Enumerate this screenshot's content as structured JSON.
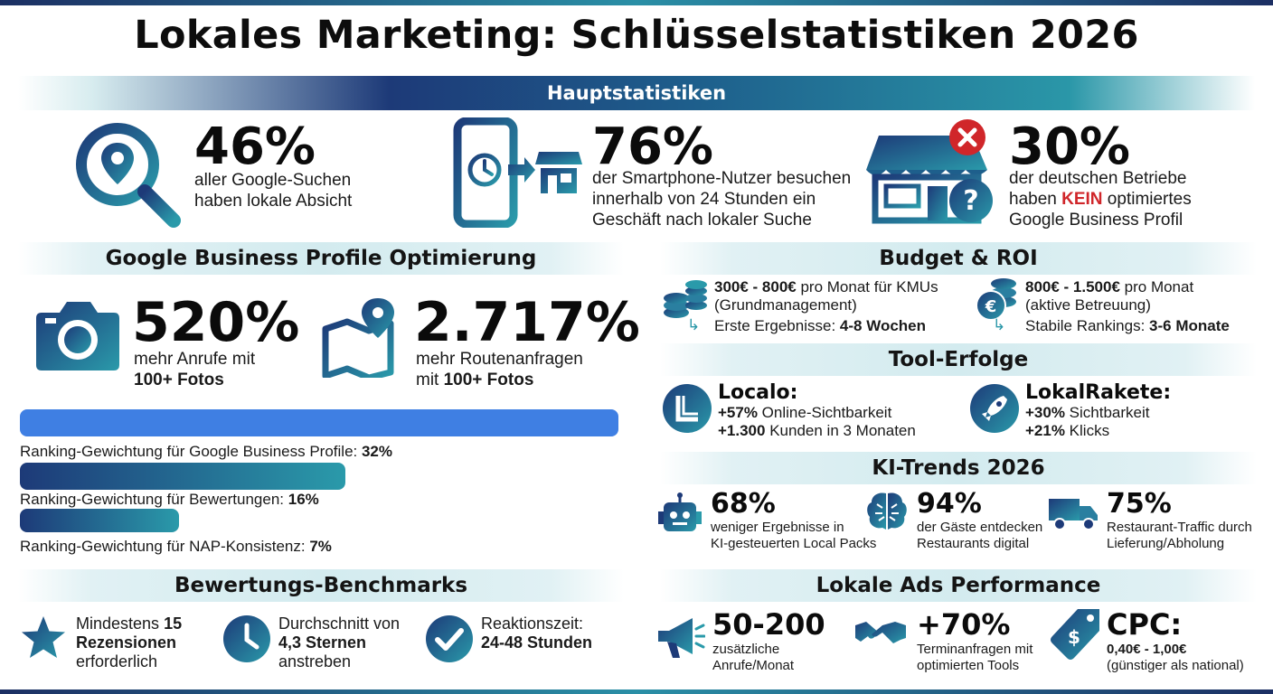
{
  "title": "Lokales Marketing: Schlüsselstatistiken 2026",
  "main": {
    "banner": "Hauptstatistiken",
    "stats": [
      {
        "value": "46%",
        "line1": "aller Google-Suchen",
        "line2": "haben lokale Absicht"
      },
      {
        "value": "76%",
        "line1": "der Smartphone-Nutzer besuchen",
        "line2": "innerhalb von 24 Stunden ein",
        "line3": "Geschäft nach lokaler Suche"
      },
      {
        "value": "30%",
        "line1": "der deutschen Betriebe",
        "line2a": "haben ",
        "line2b": "KEIN",
        "line2c": " optimiertes",
        "line3": "Google Business Profil"
      }
    ]
  },
  "gbp": {
    "heading": "Google Business Profile Optimierung",
    "stat1": {
      "value": "520%",
      "line1": "mehr Anrufe mit",
      "line2": "100+ Fotos"
    },
    "stat2": {
      "value": "2.717%",
      "line1": "mehr Routenanfragen",
      "line2a": "mit ",
      "line2b": "100+ Fotos"
    },
    "bars": [
      {
        "label": "Ranking-Gewichtung für Google Business Profile: ",
        "value": "32%",
        "percent": 32
      },
      {
        "label": "Ranking-Gewichtung für Bewertungen: ",
        "value": "16%",
        "percent": 16
      },
      {
        "label": "Ranking-Gewichtung für NAP-Konsistenz: ",
        "value": "7%",
        "percent": 7
      }
    ]
  },
  "reviews": {
    "heading": "Bewertungs-Benchmarks",
    "items": [
      {
        "l1a": "Mindestens ",
        "l1b": "15",
        "l2": "Rezensionen",
        "l3": "erforderlich"
      },
      {
        "l1": "Durchschnitt von",
        "l2": "4,3 Sternen",
        "l3": "anstreben"
      },
      {
        "l1": "Reaktionszeit:",
        "l2": "24-48 Stunden"
      }
    ]
  },
  "budget": {
    "heading": "Budget & ROI",
    "items": [
      {
        "price": "300€ - 800€",
        "rest": " pro Monat für KMUs",
        "line2": "(Grundmanagement)",
        "result": "Erste Ergebnisse: ",
        "result_b": "4-8 Wochen"
      },
      {
        "price": "800€ - 1.500€",
        "rest": " pro Monat",
        "line2": "(aktive Betreuung)",
        "result": "Stabile Rankings: ",
        "result_b": "3-6 Monate"
      }
    ]
  },
  "tools": {
    "heading": "Tool-Erfolge",
    "items": [
      {
        "name": "Localo:",
        "l1b": "+57%",
        "l1": " Online-Sichtbarkeit",
        "l2b": "+1.300",
        "l2": " Kunden in 3 Monaten"
      },
      {
        "name": "LokalRakete:",
        "l1b": "+30%",
        "l1": " Sichtbarkeit",
        "l2b": "+21%",
        "l2": " Klicks"
      }
    ]
  },
  "ai": {
    "heading": "KI-Trends 2026",
    "items": [
      {
        "value": "68%",
        "l1": "weniger Ergebnisse in",
        "l2": "KI-gesteuerten Local Packs"
      },
      {
        "value": "94%",
        "l1": "der Gäste entdecken",
        "l2": "Restaurants digital"
      },
      {
        "value": "75%",
        "l1": "Restaurant-Traffic durch",
        "l2": "Lieferung/Abholung"
      }
    ]
  },
  "ads": {
    "heading": "Lokale Ads Performance",
    "items": [
      {
        "value": "50-200",
        "l1": "zusätzliche",
        "l2": "Anrufe/Monat"
      },
      {
        "value": "+70%",
        "l1": "Terminanfragen mit",
        "l2": "optimierten Tools"
      },
      {
        "value": "CPC:",
        "l1": "0,40€ - 1,00€",
        "l2": "(günstiger als national)"
      }
    ]
  },
  "colors": {
    "navy": "#1d3a78",
    "teal": "#2a97a8",
    "blue": "#3f7fe3",
    "red": "#d0262a"
  },
  "icons": [
    "location-search-icon",
    "smartphone-store-icon",
    "closed-store-icon",
    "camera-icon",
    "map-pin-icon",
    "coins-icon",
    "euro-coins-icon",
    "localo-logo-icon",
    "rocket-icon",
    "robot-icon",
    "brain-icon",
    "truck-icon",
    "megaphone-icon",
    "handshake-icon",
    "price-tag-icon",
    "star-icon",
    "clock-icon",
    "check-icon"
  ]
}
